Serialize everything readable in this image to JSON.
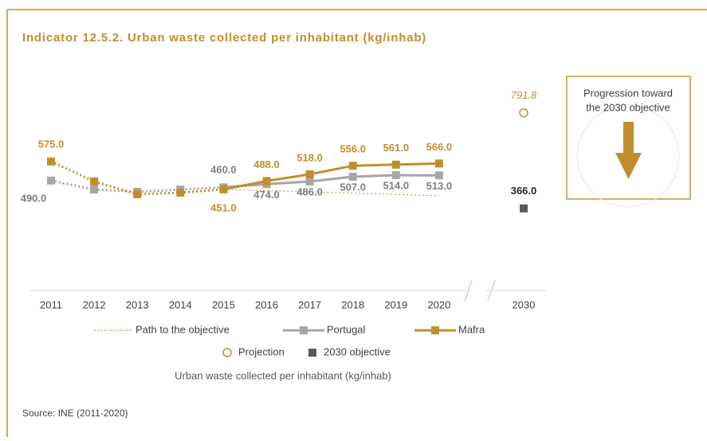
{
  "chart_data": {
    "type": "line",
    "title": "Indicator 12.5.2. Urban waste collected per inhabitant (kg/inhab)",
    "categories": [
      "2011",
      "2012",
      "2013",
      "2014",
      "2015",
      "2016",
      "2017",
      "2018",
      "2019",
      "2020",
      "2030"
    ],
    "ylim": [
      0,
      1000
    ],
    "series": [
      {
        "name": "Path to the objective",
        "color": "#c8963e",
        "style": "dotted",
        "values": [
          null,
          null,
          null,
          null,
          451,
          445.3,
          439.7,
          434,
          428.3,
          422.7,
          null
        ]
      },
      {
        "name": "Portugal",
        "color": "#a6a6a6",
        "style": "line",
        "dotted_through_index": 4,
        "values": [
          490,
          450,
          440,
          450,
          460,
          474,
          486,
          507,
          514,
          513,
          null
        ],
        "value_labels": [
          "490.0",
          null,
          null,
          null,
          "460.0",
          "474.0",
          "486.0",
          "507.0",
          "514.0",
          "513.0",
          null
        ]
      },
      {
        "name": "Mafra",
        "color": "#c28e2d",
        "style": "line",
        "dotted_through_index": 4,
        "values": [
          575,
          486,
          429,
          436,
          451,
          488,
          518,
          556,
          561,
          566,
          null
        ],
        "value_labels": [
          "575.0",
          null,
          null,
          null,
          "451.0",
          "488.0",
          "518.0",
          "556.0",
          "561.0",
          "566.0",
          null
        ]
      },
      {
        "name": "Projection",
        "color": "#c28e2d",
        "style": "hollow-circle",
        "values": [
          null,
          null,
          null,
          null,
          null,
          null,
          null,
          null,
          null,
          null,
          791.8
        ],
        "value_labels": [
          null,
          null,
          null,
          null,
          null,
          null,
          null,
          null,
          null,
          null,
          "791.8"
        ]
      },
      {
        "name": "2030 objective",
        "color": "#595959",
        "style": "square",
        "values": [
          null,
          null,
          null,
          null,
          null,
          null,
          null,
          null,
          null,
          null,
          366
        ],
        "value_labels": [
          null,
          null,
          null,
          null,
          null,
          null,
          null,
          null,
          null,
          null,
          "366.0"
        ]
      }
    ],
    "axis_label": "Urban waste collected per inhabitant (kg/inhab)",
    "box_text": [
      "Progression toward",
      "the 2030 objective"
    ],
    "source": "Source: INE (2011-2020)"
  }
}
